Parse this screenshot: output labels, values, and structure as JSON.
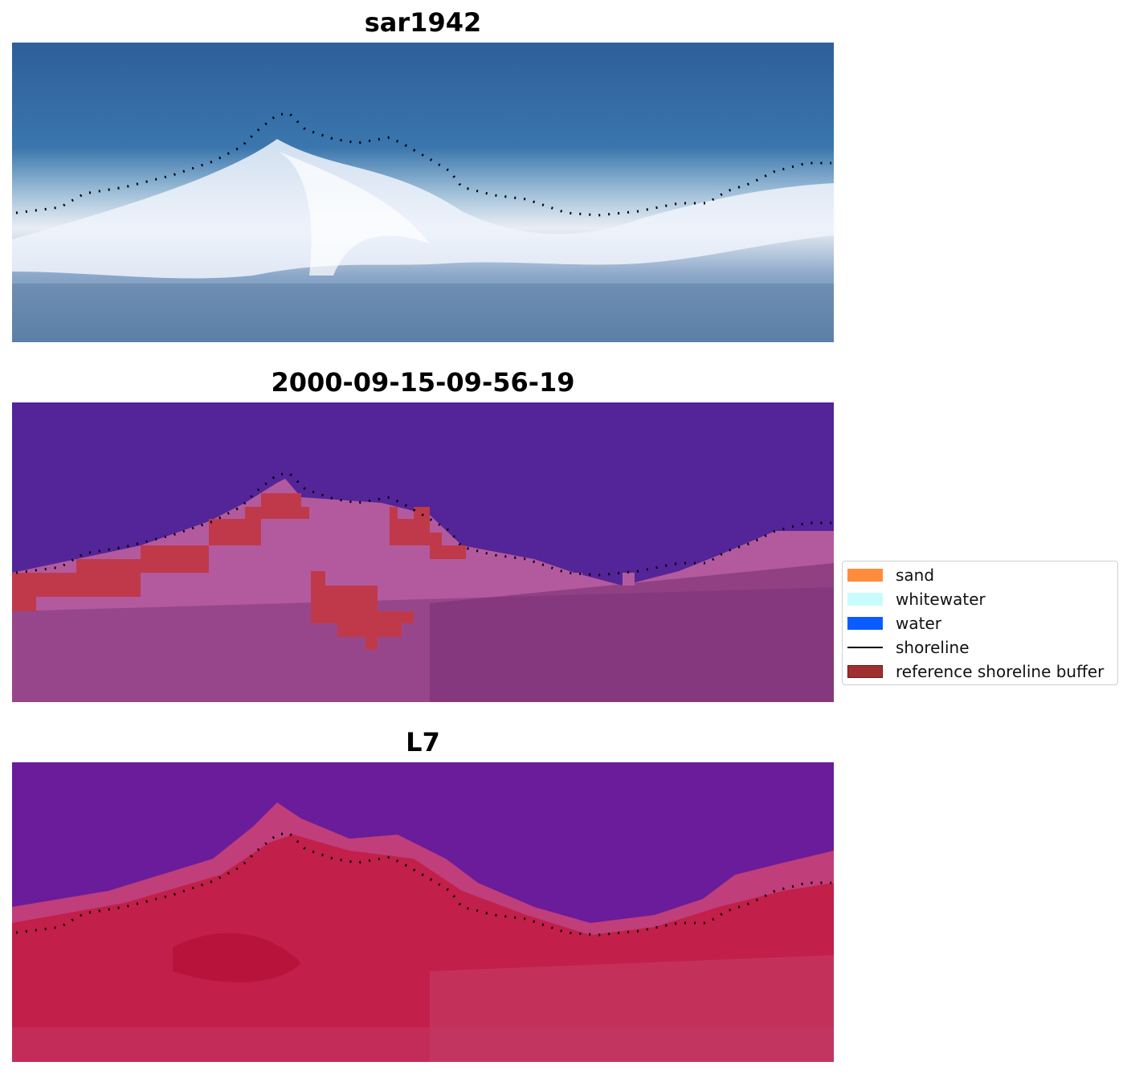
{
  "panels": [
    {
      "title": "sar1942",
      "image": "true-color satellite tile of a coastline with white surf and blue water"
    },
    {
      "title": "2000-09-15-09-56-19",
      "image": "classified image with purple water, pink land and red reference shoreline buffer cells"
    },
    {
      "title": "L7",
      "image": "false-color satellite tile with purple water and crimson land"
    }
  ],
  "legend": {
    "items": [
      {
        "label": "sand",
        "color": "#ff8c3a",
        "kind": "patch"
      },
      {
        "label": "whitewater",
        "color": "#c8fcfc",
        "kind": "patch"
      },
      {
        "label": "water",
        "color": "#0a5cff",
        "kind": "patch"
      },
      {
        "label": "shoreline",
        "color": "#000000",
        "kind": "line"
      },
      {
        "label": "reference shoreline buffer",
        "color": "#a03030",
        "kind": "patch"
      }
    ]
  }
}
